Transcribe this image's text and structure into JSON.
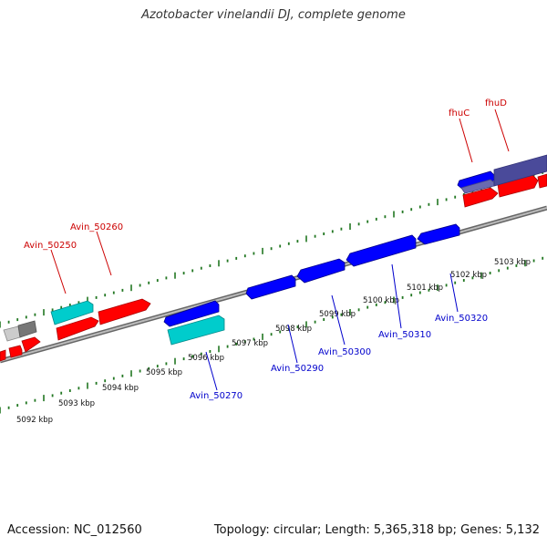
{
  "title": "Azotobacter vinelandii DJ, complete genome",
  "footer": {
    "accession": "Accession: NC_012560",
    "summary": "Topology: circular; Length: 5,365,318 bp; Genes: 5,132"
  },
  "colors": {
    "forward_cds": "#ff0000",
    "reverse_cds": "#0000ff",
    "rna_feature": "#00cccc",
    "pseudo_feature": "#888888",
    "ticks": "#227722",
    "backbone": "#888888",
    "label_forward": "#cc0000",
    "label_reverse": "#0000cc"
  },
  "scale": {
    "unit": "kbp",
    "ticks": [
      "5092 kbp",
      "5093 kbp",
      "5094 kbp",
      "5095 kbp",
      "5096 kbp",
      "5097 kbp",
      "5098 kbp",
      "5099 kbp",
      "5100 kbp",
      "5101 kbp",
      "5102 kbp",
      "5103 kbp"
    ]
  },
  "gene_labels": {
    "above": [
      "Avin_50250",
      "Avin_50260",
      "fhuC",
      "fhuD"
    ],
    "below": [
      "Avin_50270",
      "Avin_50290",
      "Avin_50300",
      "Avin_50310",
      "Avin_50320"
    ]
  }
}
